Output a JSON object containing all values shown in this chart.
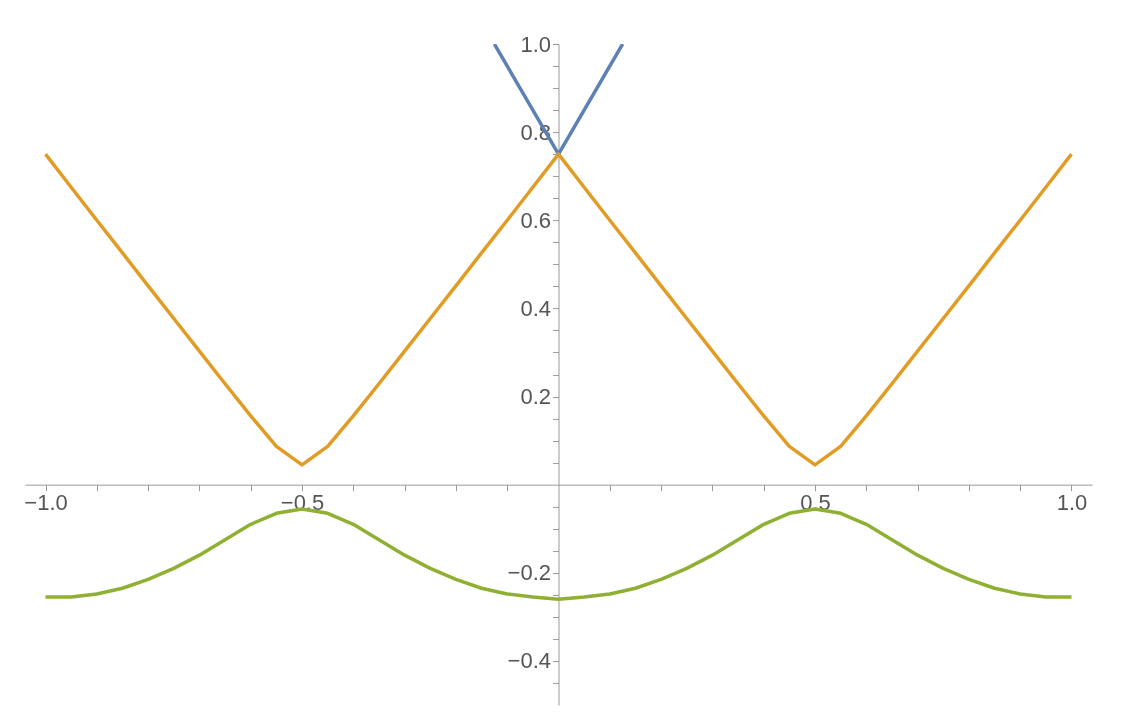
{
  "chart_data": {
    "type": "line",
    "xlim": [
      -1.04,
      1.04
    ],
    "ylim": [
      -0.5,
      1.0
    ],
    "xticks": [
      {
        "value": -1.0,
        "label": "−1.0"
      },
      {
        "value": -0.9,
        "label": null
      },
      {
        "value": -0.8,
        "label": null
      },
      {
        "value": -0.7,
        "label": null
      },
      {
        "value": -0.6,
        "label": null
      },
      {
        "value": -0.5,
        "label": "−0.5"
      },
      {
        "value": -0.4,
        "label": null
      },
      {
        "value": -0.3,
        "label": null
      },
      {
        "value": -0.2,
        "label": null
      },
      {
        "value": -0.1,
        "label": null
      },
      {
        "value": 0.1,
        "label": null
      },
      {
        "value": 0.2,
        "label": null
      },
      {
        "value": 0.3,
        "label": null
      },
      {
        "value": 0.4,
        "label": null
      },
      {
        "value": 0.5,
        "label": "0.5"
      },
      {
        "value": 0.6,
        "label": null
      },
      {
        "value": 0.7,
        "label": null
      },
      {
        "value": 0.8,
        "label": null
      },
      {
        "value": 0.9,
        "label": null
      },
      {
        "value": 1.0,
        "label": "1.0"
      }
    ],
    "yticks": [
      {
        "value": -0.45,
        "label": null
      },
      {
        "value": -0.4,
        "label": "−0.4"
      },
      {
        "value": -0.35,
        "label": null
      },
      {
        "value": -0.3,
        "label": null
      },
      {
        "value": -0.25,
        "label": null
      },
      {
        "value": -0.2,
        "label": "−0.2"
      },
      {
        "value": -0.15,
        "label": null
      },
      {
        "value": -0.1,
        "label": null
      },
      {
        "value": -0.05,
        "label": null
      },
      {
        "value": 0.05,
        "label": null
      },
      {
        "value": 0.1,
        "label": null
      },
      {
        "value": 0.15,
        "label": null
      },
      {
        "value": 0.2,
        "label": "0.2"
      },
      {
        "value": 0.25,
        "label": null
      },
      {
        "value": 0.3,
        "label": null
      },
      {
        "value": 0.35,
        "label": null
      },
      {
        "value": 0.4,
        "label": "0.4"
      },
      {
        "value": 0.45,
        "label": null
      },
      {
        "value": 0.5,
        "label": null
      },
      {
        "value": 0.55,
        "label": null
      },
      {
        "value": 0.6,
        "label": "0.6"
      },
      {
        "value": 0.65,
        "label": null
      },
      {
        "value": 0.7,
        "label": null
      },
      {
        "value": 0.75,
        "label": null
      },
      {
        "value": 0.8,
        "label": "0.8"
      },
      {
        "value": 0.85,
        "label": null
      },
      {
        "value": 0.9,
        "label": null
      },
      {
        "value": 0.95,
        "label": null
      },
      {
        "value": 1.0,
        "label": "1.0"
      }
    ],
    "grid": false,
    "line_style": "solid",
    "series": [
      {
        "color": "#5e81b5",
        "x": [
          -0.125,
          0,
          0.125
        ],
        "values": [
          1.0,
          0.75,
          1.0
        ]
      },
      {
        "color": "#e19c24",
        "x": [
          -1.0,
          -0.95,
          -0.9,
          -0.85,
          -0.8,
          -0.75,
          -0.7,
          -0.65,
          -0.6,
          -0.55,
          -0.5,
          -0.45,
          -0.4,
          -0.35,
          -0.3,
          -0.25,
          -0.2,
          -0.15,
          -0.1,
          -0.05,
          0,
          0.05,
          0.1,
          0.15,
          0.2,
          0.25,
          0.3,
          0.35,
          0.4,
          0.45,
          0.5,
          0.55,
          0.6,
          0.65,
          0.7,
          0.75,
          0.8,
          0.85,
          0.9,
          0.95,
          1.0
        ],
        "values": [
          0.75,
          0.675,
          0.6,
          0.526,
          0.451,
          0.377,
          0.303,
          0.229,
          0.156,
          0.087,
          0.045,
          0.087,
          0.156,
          0.229,
          0.303,
          0.377,
          0.451,
          0.526,
          0.6,
          0.675,
          0.75,
          0.675,
          0.6,
          0.526,
          0.451,
          0.377,
          0.303,
          0.229,
          0.156,
          0.087,
          0.045,
          0.087,
          0.156,
          0.229,
          0.303,
          0.377,
          0.451,
          0.526,
          0.6,
          0.675,
          0.75
        ]
      },
      {
        "color": "#8fb032",
        "x": [
          -1.0,
          -0.95,
          -0.9,
          -0.85,
          -0.8,
          -0.75,
          -0.7,
          -0.65,
          -0.6,
          -0.55,
          -0.5,
          -0.45,
          -0.4,
          -0.35,
          -0.3,
          -0.25,
          -0.2,
          -0.15,
          -0.1,
          -0.05,
          0,
          0.05,
          0.1,
          0.15,
          0.2,
          0.25,
          0.3,
          0.35,
          0.4,
          0.45,
          0.5,
          0.55,
          0.6,
          0.65,
          0.7,
          0.75,
          0.8,
          0.85,
          0.9,
          0.95,
          1.0
        ],
        "values": [
          -0.255,
          -0.255,
          -0.248,
          -0.235,
          -0.215,
          -0.19,
          -0.16,
          -0.125,
          -0.09,
          -0.065,
          -0.055,
          -0.065,
          -0.09,
          -0.125,
          -0.16,
          -0.19,
          -0.215,
          -0.235,
          -0.248,
          -0.255,
          -0.26,
          -0.255,
          -0.248,
          -0.235,
          -0.215,
          -0.19,
          -0.16,
          -0.125,
          -0.09,
          -0.065,
          -0.055,
          -0.065,
          -0.09,
          -0.125,
          -0.16,
          -0.19,
          -0.215,
          -0.235,
          -0.248,
          -0.255,
          -0.255
        ]
      }
    ]
  }
}
